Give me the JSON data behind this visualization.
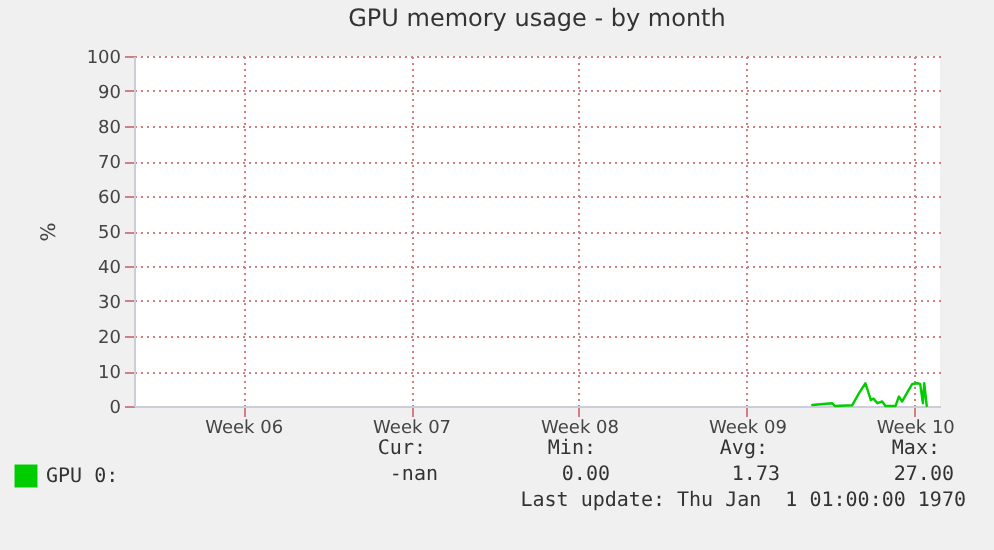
{
  "chart_data": {
    "type": "line",
    "title": "GPU memory usage - by month",
    "ylabel": "%",
    "x": [
      "--02-26T17:21",
      "--02-27T13:21",
      "--02-27T16:02",
      "--02-28T09:20",
      "--02-28T16:03",
      "--02-28T22:36",
      "--03-01T03:59",
      "--03-01T06:40",
      "--03-01T10:32",
      "--03-01T15:24",
      "--03-01T18:36",
      "--03-02T04:41",
      "--03-02T08:02",
      "--03-02T11:24",
      "--03-02T15:56",
      "--03-02T21:29",
      "--03-03T02:31",
      "--03-03T05:23",
      "--03-03T08:04",
      "--03-03T09:24",
      "--03-03T11:56"
    ],
    "series": [
      {
        "name": "GPU 0:",
        "color": "#00cc00",
        "values": [
          0.3,
          0.8,
          0,
          0.2,
          3.6,
          6.5,
          1.7,
          2.1,
          0.8,
          1.3,
          0,
          0,
          2.7,
          1.3,
          3.6,
          6.3,
          6.5,
          6.3,
          0.8,
          6.5,
          0
        ]
      }
    ],
    "xlim": [
      "--01-29T10:48",
      "--03-04T01:12"
    ],
    "xticks": [
      {
        "value": "--02-03",
        "label": "Week 06"
      },
      {
        "value": "--02-10",
        "label": "Week 07"
      },
      {
        "value": "--02-17",
        "label": "Week 08"
      },
      {
        "value": "--02-24",
        "label": "Week 09"
      },
      {
        "value": "--03-03",
        "label": "Week 10"
      }
    ],
    "ylim": [
      0,
      100
    ],
    "yticks": [
      0,
      10,
      20,
      30,
      40,
      50,
      60,
      70,
      80,
      90,
      100
    ],
    "grid": true,
    "legend": "bottom left",
    "marker": "none",
    "line_style": "solid",
    "annotations": [
      "Cur:",
      "Min:",
      "Avg:",
      "Max:",
      "-nan",
      "0.00",
      "1.73",
      "27.00",
      "Last update: Thu Jan  1 01:00:00 1970"
    ]
  }
}
